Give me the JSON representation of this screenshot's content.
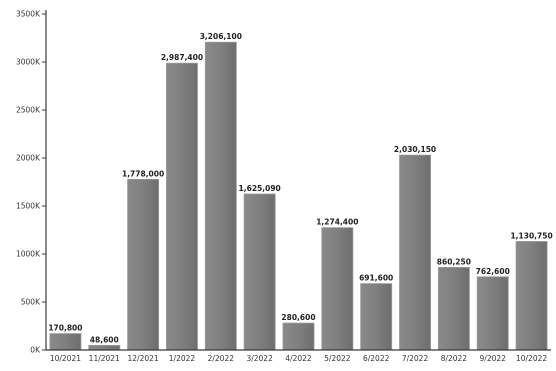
{
  "chart_data": {
    "type": "bar",
    "categories": [
      "10/2021",
      "11/2021",
      "12/2021",
      "1/2022",
      "2/2022",
      "3/2022",
      "4/2022",
      "5/2022",
      "6/2022",
      "7/2022",
      "8/2022",
      "9/2022",
      "10/2022"
    ],
    "values": [
      170800,
      48600,
      1778000,
      2987400,
      3206100,
      1625090,
      280600,
      1274400,
      691600,
      2030150,
      860250,
      762600,
      1130750
    ],
    "data_labels": [
      "170,800",
      "48,600",
      "1,778,000",
      "2,987,400",
      "3,206,100",
      "1,625,090",
      "280,600",
      "1,274,400",
      "691,600",
      "2,030,150",
      "860,250",
      "762,600",
      "1,130,750"
    ],
    "title": "",
    "xlabel": "",
    "ylabel": "",
    "ylim": [
      0,
      3500000
    ],
    "yticks": [
      0,
      500000,
      1000000,
      1500000,
      2000000,
      2500000,
      3000000,
      3500000
    ],
    "ytick_labels": [
      "0K",
      "500K",
      "1000K",
      "1500K",
      "2000K",
      "2500K",
      "3000K",
      "3500K"
    ],
    "grid": false,
    "legend": "none",
    "colors": {
      "bar": "#7f7f7f",
      "axis": "#3a3a3a"
    }
  }
}
